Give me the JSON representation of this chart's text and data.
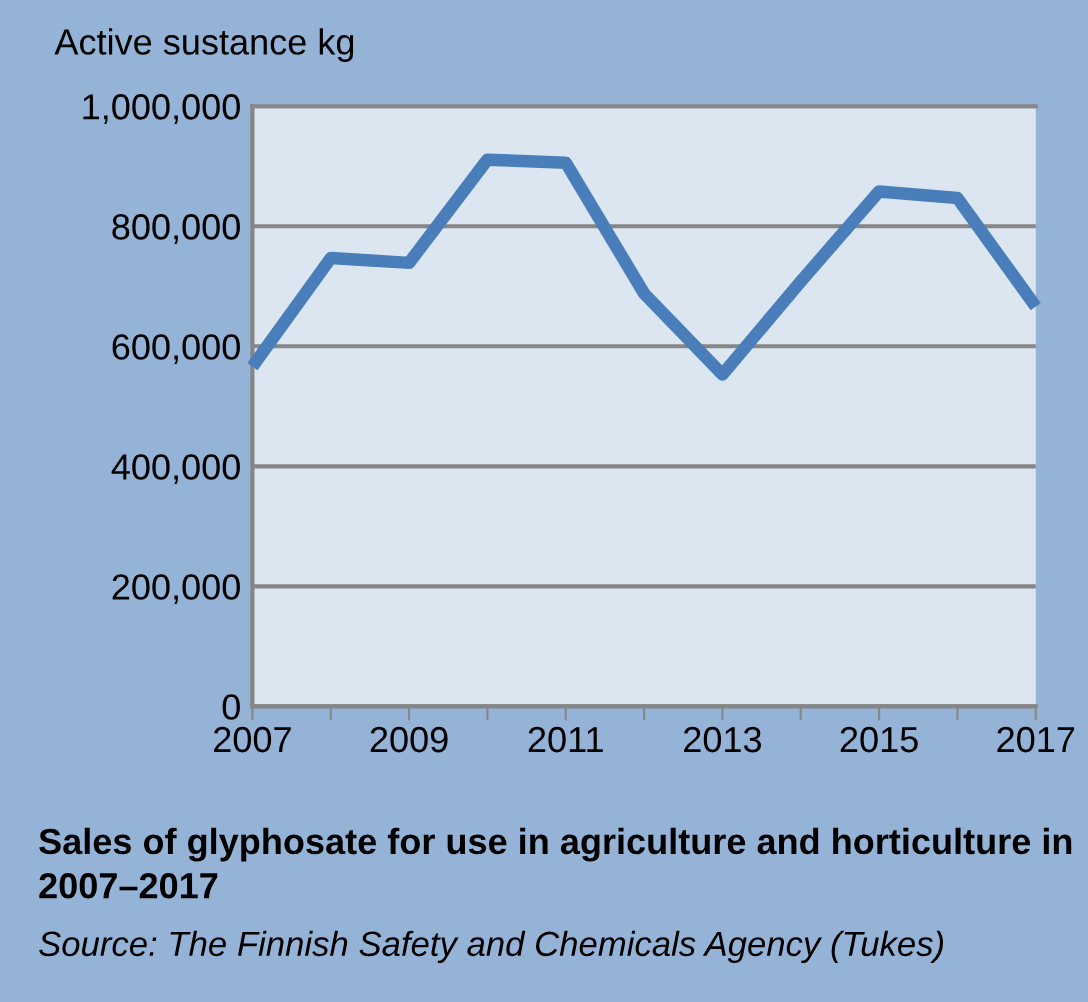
{
  "chart_data": {
    "type": "line",
    "title": "Sales of glyphosate for use in agriculture and horticulture in 2007–2017",
    "ylabel": "Active sustance kg",
    "annotations": [
      "Source: The Finnish Safety and Chemicals Agency (Tukes)"
    ],
    "x": [
      2007,
      2008,
      2009,
      2010,
      2011,
      2012,
      2013,
      2014,
      2015,
      2016,
      2017
    ],
    "series": [
      {
        "color": "#4a7ebb",
        "values": [
          566000,
          747000,
          739000,
          911000,
          906000,
          688000,
          553000,
          708000,
          858000,
          847000,
          666000
        ]
      }
    ],
    "xlim": [
      2007,
      2017
    ],
    "xticks": [
      2007,
      {
        "value": 2008,
        "label": null
      },
      2009,
      {
        "value": 2010,
        "label": null
      },
      2011,
      {
        "value": 2012,
        "label": null
      },
      2013,
      {
        "value": 2014,
        "label": null
      },
      2015,
      {
        "value": 2016,
        "label": null
      },
      2017
    ],
    "ylim": [
      0,
      1000000
    ],
    "yticks": [
      {
        "value": 0,
        "label": "0"
      },
      {
        "value": 200000,
        "label": "200,000"
      },
      {
        "value": 400000,
        "label": "400,000"
      },
      {
        "value": 600000,
        "label": "600,000"
      },
      {
        "value": 800000,
        "label": "800,000"
      },
      {
        "value": 1000000,
        "label": "1,000,000"
      }
    ],
    "grid": "y",
    "marker": "none",
    "line_style": "solid",
    "legend": false
  }
}
